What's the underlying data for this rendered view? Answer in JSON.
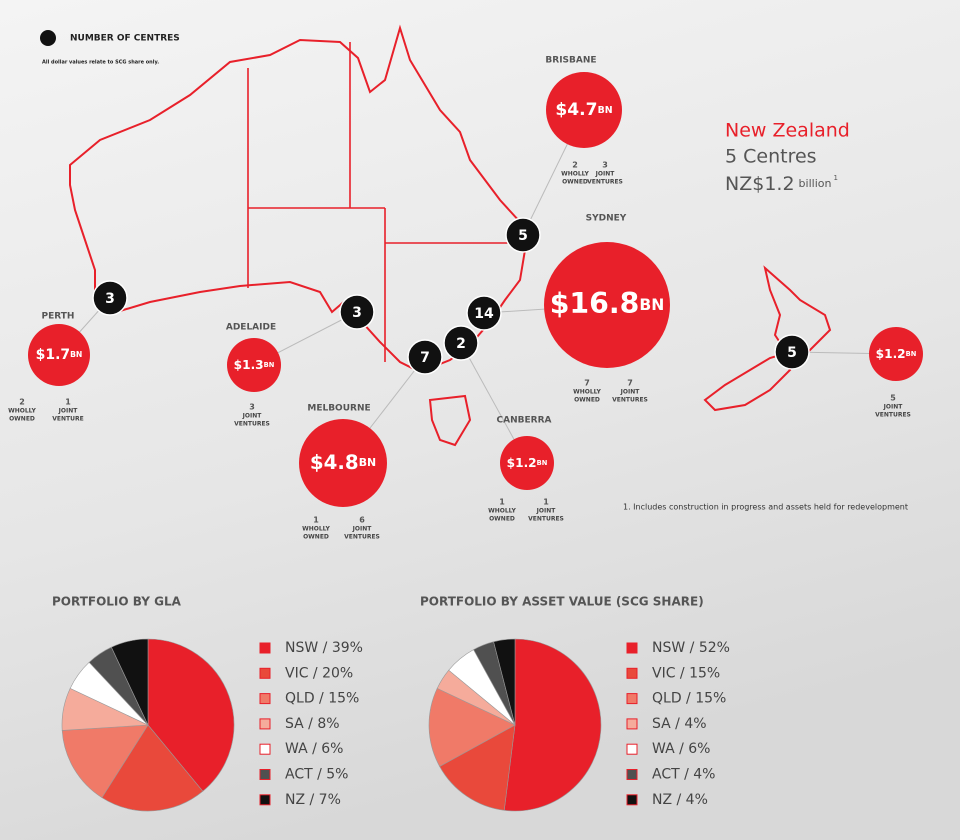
{
  "legend": {
    "label": "NUMBER OF CENTRES",
    "note": "All dollar values relate to SCG share only."
  },
  "cities": [
    {
      "name": "PERTH",
      "amount": "$1.7",
      "unit": "BN",
      "centres": 3,
      "counts": [
        {
          "count": 2,
          "label": [
            "WHOLLY",
            "OWNED"
          ]
        },
        {
          "count": 1,
          "label": [
            "JOINT",
            "VENTURE"
          ]
        }
      ]
    },
    {
      "name": "ADELAIDE",
      "amount": "$1.3",
      "unit": "BN",
      "centres": 3,
      "counts": [
        {
          "count": 3,
          "label": [
            "JOINT",
            "VENTURES"
          ]
        }
      ]
    },
    {
      "name": "MELBOURNE",
      "amount": "$4.8",
      "unit": "BN",
      "centres": 7,
      "counts": [
        {
          "count": 1,
          "label": [
            "WHOLLY",
            "OWNED"
          ]
        },
        {
          "count": 6,
          "label": [
            "JOINT",
            "VENTURES"
          ]
        }
      ]
    },
    {
      "name": "CANBERRA",
      "amount": "$1.2",
      "unit": "BN",
      "centres": 2,
      "counts": [
        {
          "count": 1,
          "label": [
            "WHOLLY",
            "OWNED"
          ]
        },
        {
          "count": 1,
          "label": [
            "JOINT",
            "VENTURES"
          ]
        }
      ]
    },
    {
      "name": "SYDNEY",
      "amount": "$16.8",
      "unit": "BN",
      "centres": 14,
      "counts": [
        {
          "count": 7,
          "label": [
            "WHOLLY",
            "OWNED"
          ]
        },
        {
          "count": 7,
          "label": [
            "JOINT",
            "VENTURES"
          ]
        }
      ]
    },
    {
      "name": "BRISBANE",
      "amount": "$4.7",
      "unit": "BN",
      "centres": 5,
      "counts": [
        {
          "count": 2,
          "label": [
            "WHOLLY",
            "OWNED"
          ]
        },
        {
          "count": 3,
          "label": [
            "JOINT",
            "VENTURES"
          ]
        }
      ]
    },
    {
      "amount": "$1.2",
      "unit": "BN",
      "centres": 5,
      "counts": [
        {
          "count": 5,
          "label": [
            "JOINT",
            "VENTURES"
          ]
        }
      ]
    }
  ],
  "new_zealand": {
    "title": "New Zealand",
    "centres": "5 Centres",
    "value": "NZ$1.2",
    "unit": "billion",
    "note_ref": "1"
  },
  "footnote": "1. Includes construction in progress and assets held for redevelopment",
  "chart_data": [
    {
      "type": "pie",
      "title": "PORTFOLIO BY GLA",
      "categories": [
        "NSW",
        "VIC",
        "QLD",
        "SA",
        "WA",
        "ACT",
        "NZ"
      ],
      "values": [
        39,
        20,
        15,
        8,
        6,
        5,
        7
      ],
      "value_labels": [
        "NSW / 39%",
        "VIC / 20%",
        "QLD / 15%",
        "SA / 8%",
        "WA / 6%",
        "ACT / 5%",
        "NZ / 7%"
      ],
      "colors": [
        "#e8202a",
        "#e9493b",
        "#f07a68",
        "#f5ab9b",
        "#ffffff",
        "#505050",
        "#111111"
      ]
    },
    {
      "type": "pie",
      "title": "PORTFOLIO BY ASSET VALUE (SCG SHARE)",
      "categories": [
        "NSW",
        "VIC",
        "QLD",
        "SA",
        "WA",
        "ACT",
        "NZ"
      ],
      "values": [
        52,
        15,
        15,
        4,
        6,
        4,
        4
      ],
      "value_labels": [
        "NSW / 52%",
        "VIC / 15%",
        "QLD / 15%",
        "SA / 4%",
        "WA / 6%",
        "ACT / 4%",
        "NZ / 4%"
      ],
      "colors": [
        "#e8202a",
        "#e9493b",
        "#f07a68",
        "#f5ab9b",
        "#ffffff",
        "#505050",
        "#111111"
      ]
    }
  ]
}
